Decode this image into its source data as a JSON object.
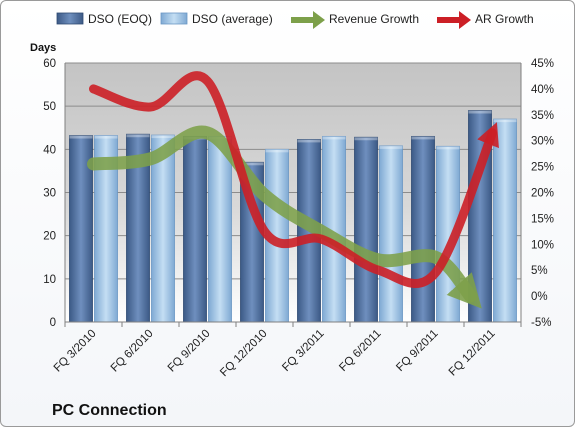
{
  "chart_data": {
    "type": "bar",
    "title": "",
    "footer_label": "PC Connection",
    "categories": [
      "FQ 3/2010",
      "FQ 6/2010",
      "FQ 9/2010",
      "FQ 12/2010",
      "FQ 3/2011",
      "FQ 6/2011",
      "FQ 9/2011",
      "FQ 12/2011"
    ],
    "y_left": {
      "label": "Days",
      "min": 0,
      "max": 60,
      "step": 10
    },
    "y_right": {
      "min": -5,
      "max": 45,
      "step": 5,
      "unit": "%"
    },
    "series": [
      {
        "name": "DSO (EOQ)",
        "kind": "bar",
        "axis": "left",
        "color": "#4f6f9c",
        "values": [
          43.2,
          43.5,
          43.0,
          37.0,
          42.3,
          42.8,
          43.0,
          49.0
        ]
      },
      {
        "name": "DSO (average)",
        "kind": "bar",
        "axis": "left",
        "color": "#9dc3e6",
        "values": [
          43.2,
          43.3,
          43.0,
          40.0,
          43.0,
          40.8,
          40.7,
          47.0
        ]
      },
      {
        "name": "Revenue Growth",
        "kind": "line",
        "axis": "right",
        "color": "#7da04a",
        "values": [
          25.5,
          26.5,
          31.5,
          19.5,
          12.5,
          7.0,
          7.5,
          0.0
        ]
      },
      {
        "name": "AR Growth",
        "kind": "line",
        "axis": "right",
        "color": "#cc1f26",
        "values": [
          40.0,
          36.5,
          41.5,
          12.5,
          11.0,
          5.0,
          4.5,
          31.5
        ]
      }
    ],
    "grid": true,
    "legend": "top"
  }
}
